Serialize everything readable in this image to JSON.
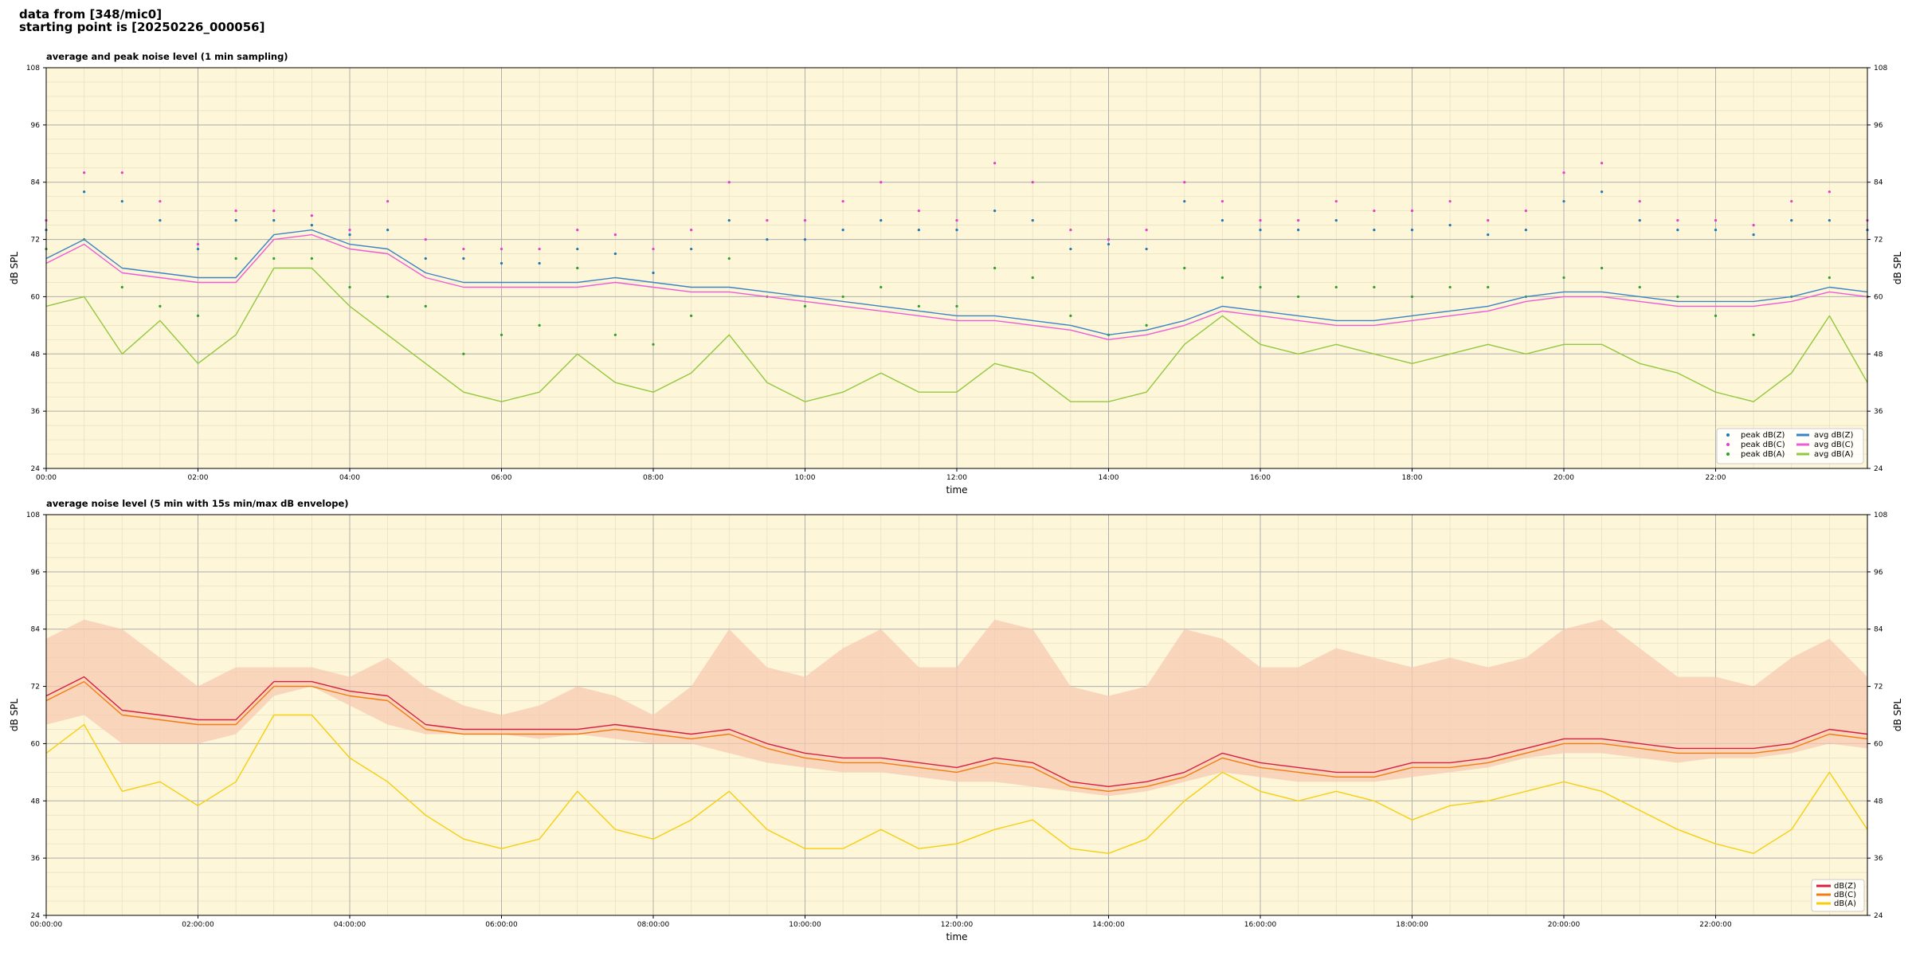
{
  "header": {
    "line1": "data from [348/mic0]",
    "line2": "starting point is [20250226_000056]"
  },
  "chart_data": [
    {
      "type": "line",
      "title": "average and peak noise level (1 min sampling)",
      "xlabel": "time",
      "ylabel": "dB SPL",
      "xlim": [
        0,
        24
      ],
      "ylim": [
        24,
        108
      ],
      "x_unit": "hours",
      "x_tick_labels": [
        "00:00",
        "02:00",
        "04:00",
        "06:00",
        "08:00",
        "10:00",
        "12:00",
        "14:00",
        "16:00",
        "18:00",
        "20:00",
        "22:00"
      ],
      "y_ticks": [
        24,
        36,
        48,
        60,
        72,
        84,
        96,
        108
      ],
      "grid": true,
      "background": "#fdf6d8",
      "legend_position": "lower-right",
      "x": [
        0,
        0.5,
        1,
        1.5,
        2,
        2.5,
        3,
        3.5,
        4,
        4.5,
        5,
        5.5,
        6,
        6.5,
        7,
        7.5,
        8,
        8.5,
        9,
        9.5,
        10,
        10.5,
        11,
        11.5,
        12,
        12.5,
        13,
        13.5,
        14,
        14.5,
        15,
        15.5,
        16,
        16.5,
        17,
        17.5,
        18,
        18.5,
        19,
        19.5,
        20,
        20.5,
        21,
        21.5,
        22,
        22.5,
        23,
        23.5,
        24
      ],
      "series": [
        {
          "name": "peak dB(Z)",
          "kind": "scatter",
          "color": "#1f77b4",
          "values": [
            74,
            82,
            80,
            76,
            70,
            76,
            76,
            75,
            73,
            74,
            68,
            68,
            67,
            67,
            70,
            69,
            65,
            70,
            76,
            72,
            72,
            74,
            76,
            74,
            74,
            78,
            76,
            70,
            71,
            70,
            80,
            76,
            74,
            74,
            76,
            74,
            74,
            75,
            73,
            74,
            80,
            82,
            76,
            74,
            74,
            73,
            76,
            76,
            74
          ]
        },
        {
          "name": "peak dB(C)",
          "kind": "scatter",
          "color": "#e83ccf",
          "values": [
            76,
            86,
            86,
            80,
            71,
            78,
            78,
            77,
            74,
            80,
            72,
            70,
            70,
            70,
            74,
            73,
            70,
            74,
            84,
            76,
            76,
            80,
            84,
            78,
            76,
            88,
            84,
            74,
            72,
            74,
            84,
            80,
            76,
            76,
            80,
            78,
            78,
            80,
            76,
            78,
            86,
            88,
            80,
            76,
            76,
            75,
            80,
            82,
            76
          ]
        },
        {
          "name": "peak dB(A)",
          "kind": "scatter",
          "color": "#2ca02c",
          "values": [
            70,
            72,
            62,
            58,
            56,
            68,
            68,
            68,
            62,
            60,
            58,
            48,
            52,
            54,
            66,
            52,
            50,
            56,
            68,
            60,
            58,
            60,
            62,
            58,
            58,
            66,
            64,
            56,
            52,
            54,
            66,
            64,
            62,
            60,
            62,
            62,
            60,
            62,
            62,
            60,
            64,
            66,
            62,
            60,
            56,
            52,
            60,
            64,
            60
          ]
        },
        {
          "name": "avg dB(Z)",
          "kind": "line",
          "color": "#3c83c6",
          "values": [
            68,
            72,
            66,
            65,
            64,
            64,
            73,
            74,
            71,
            70,
            65,
            63,
            63,
            63,
            63,
            64,
            63,
            62,
            62,
            61,
            60,
            59,
            58,
            57,
            56,
            56,
            55,
            54,
            52,
            53,
            55,
            58,
            57,
            56,
            55,
            55,
            56,
            57,
            58,
            60,
            61,
            61,
            60,
            59,
            59,
            59,
            60,
            62,
            61
          ]
        },
        {
          "name": "avg dB(C)",
          "kind": "line",
          "color": "#ef5bd6",
          "values": [
            67,
            71,
            65,
            64,
            63,
            63,
            72,
            73,
            70,
            69,
            64,
            62,
            62,
            62,
            62,
            63,
            62,
            61,
            61,
            60,
            59,
            58,
            57,
            56,
            55,
            55,
            54,
            53,
            51,
            52,
            54,
            57,
            56,
            55,
            54,
            54,
            55,
            56,
            57,
            59,
            60,
            60,
            59,
            58,
            58,
            58,
            59,
            61,
            60
          ]
        },
        {
          "name": "avg dB(A)",
          "kind": "line",
          "color": "#92c83e",
          "values": [
            58,
            60,
            48,
            55,
            46,
            52,
            66,
            66,
            58,
            52,
            46,
            40,
            38,
            40,
            48,
            42,
            40,
            44,
            52,
            42,
            38,
            40,
            44,
            40,
            40,
            46,
            44,
            38,
            38,
            40,
            50,
            56,
            50,
            48,
            50,
            48,
            46,
            48,
            50,
            48,
            50,
            50,
            46,
            44,
            40,
            38,
            44,
            56,
            42
          ]
        }
      ]
    },
    {
      "type": "area",
      "title": "average noise level (5 min with 15s min/max dB envelope)",
      "xlabel": "time",
      "ylabel": "dB SPL",
      "xlim": [
        0,
        24
      ],
      "ylim": [
        24,
        108
      ],
      "x_unit": "hours",
      "x_tick_labels": [
        "00:00:00",
        "02:00:00",
        "04:00:00",
        "06:00:00",
        "08:00:00",
        "10:00:00",
        "12:00:00",
        "14:00:00",
        "16:00:00",
        "18:00:00",
        "20:00:00",
        "22:00:00"
      ],
      "y_ticks": [
        24,
        36,
        48,
        60,
        72,
        84,
        96,
        108
      ],
      "grid": true,
      "background": "#fdf6d8",
      "legend_position": "lower-right",
      "x": [
        0,
        0.5,
        1,
        1.5,
        2,
        2.5,
        3,
        3.5,
        4,
        4.5,
        5,
        5.5,
        6,
        6.5,
        7,
        7.5,
        8,
        8.5,
        9,
        9.5,
        10,
        10.5,
        11,
        11.5,
        12,
        12.5,
        13,
        13.5,
        14,
        14.5,
        15,
        15.5,
        16,
        16.5,
        17,
        17.5,
        18,
        18.5,
        19,
        19.5,
        20,
        20.5,
        21,
        21.5,
        22,
        22.5,
        23,
        23.5,
        24
      ],
      "envelope": {
        "color": "#f7c9b3",
        "max": [
          82,
          86,
          84,
          78,
          72,
          76,
          76,
          76,
          74,
          78,
          72,
          68,
          66,
          68,
          72,
          70,
          66,
          72,
          84,
          76,
          74,
          80,
          84,
          76,
          76,
          86,
          84,
          72,
          70,
          72,
          84,
          82,
          76,
          76,
          80,
          78,
          76,
          78,
          76,
          78,
          84,
          86,
          80,
          74,
          74,
          72,
          78,
          82,
          74
        ],
        "min": [
          64,
          66,
          60,
          60,
          60,
          62,
          70,
          72,
          68,
          64,
          62,
          62,
          62,
          61,
          62,
          61,
          60,
          60,
          58,
          56,
          55,
          54,
          54,
          53,
          52,
          52,
          51,
          50,
          49,
          50,
          52,
          54,
          53,
          52,
          52,
          52,
          53,
          54,
          55,
          57,
          58,
          58,
          57,
          56,
          57,
          57,
          58,
          60,
          59
        ]
      },
      "series": [
        {
          "name": "dB(Z)",
          "kind": "line",
          "color": "#d62040",
          "values": [
            70,
            74,
            67,
            66,
            65,
            65,
            73,
            73,
            71,
            70,
            64,
            63,
            63,
            63,
            63,
            64,
            63,
            62,
            63,
            60,
            58,
            57,
            57,
            56,
            55,
            57,
            56,
            52,
            51,
            52,
            54,
            58,
            56,
            55,
            54,
            54,
            56,
            56,
            57,
            59,
            61,
            61,
            60,
            59,
            59,
            59,
            60,
            63,
            62
          ]
        },
        {
          "name": "dB(C)",
          "kind": "line",
          "color": "#f07d10",
          "values": [
            69,
            73,
            66,
            65,
            64,
            64,
            72,
            72,
            70,
            69,
            63,
            62,
            62,
            62,
            62,
            63,
            62,
            61,
            62,
            59,
            57,
            56,
            56,
            55,
            54,
            56,
            55,
            51,
            50,
            51,
            53,
            57,
            55,
            54,
            53,
            53,
            55,
            55,
            56,
            58,
            60,
            60,
            59,
            58,
            58,
            58,
            59,
            62,
            61
          ]
        },
        {
          "name": "dB(A)",
          "kind": "line",
          "color": "#f5cf0f",
          "values": [
            58,
            64,
            50,
            52,
            47,
            52,
            66,
            66,
            57,
            52,
            45,
            40,
            38,
            40,
            50,
            42,
            40,
            44,
            50,
            42,
            38,
            38,
            42,
            38,
            39,
            42,
            44,
            38,
            37,
            40,
            48,
            54,
            50,
            48,
            50,
            48,
            44,
            47,
            48,
            50,
            52,
            50,
            46,
            42,
            39,
            37,
            42,
            54,
            42
          ]
        }
      ]
    }
  ]
}
